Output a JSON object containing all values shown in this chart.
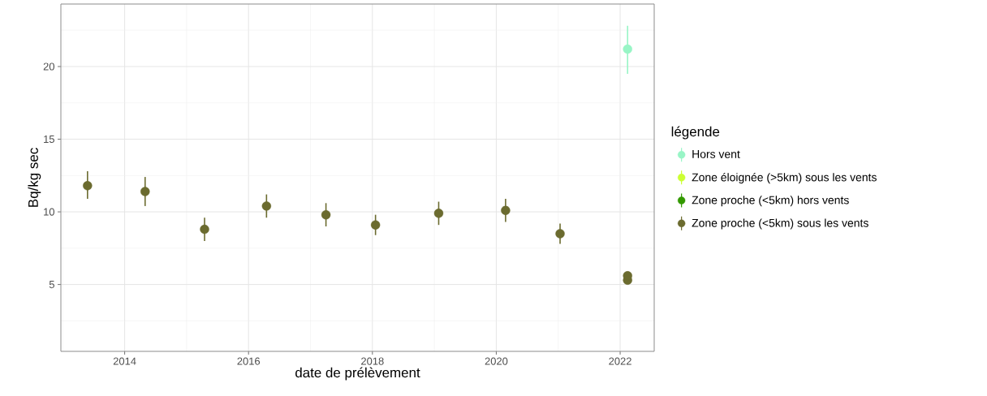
{
  "chart_data": {
    "type": "scatter",
    "xlabel": "date de prélèvement",
    "ylabel": "Bq/kg sec",
    "legend_title": "légende",
    "xlim": [
      2012.97,
      2022.55
    ],
    "ylim": [
      0.4,
      24.3
    ],
    "xticks": [
      2014,
      2016,
      2018,
      2020,
      2022
    ],
    "yticks": [
      5,
      10,
      15,
      20
    ],
    "grid": true,
    "legend": "right",
    "marker": "circle",
    "series": [
      {
        "name": "Hors vent",
        "color": "#98f5c6",
        "x": [
          2022.12
        ],
        "values": [
          21.2
        ],
        "errors": [
          [
            19.5,
            22.8
          ]
        ]
      },
      {
        "name": "Zone éloignée (>5km) sous les vents",
        "color": "#ccff33"
      },
      {
        "name": "Zone proche (<5km) hors vents",
        "color": "#339900"
      },
      {
        "name": "Zone proche (<5km) sous les vents",
        "color": "#6b6b2f",
        "x": [
          2013.4,
          2014.33,
          2015.29,
          2016.29,
          2017.25,
          2018.05,
          2019.07,
          2020.15,
          2021.03,
          2022.12,
          2022.12
        ],
        "values": [
          11.8,
          11.4,
          8.8,
          10.4,
          9.8,
          9.1,
          9.9,
          10.1,
          8.5,
          5.3,
          5.6
        ],
        "errors": [
          [
            10.9,
            12.8
          ],
          [
            10.4,
            12.4
          ],
          [
            8.0,
            9.6
          ],
          [
            9.6,
            11.2
          ],
          [
            9.0,
            10.6
          ],
          [
            8.4,
            9.8
          ],
          [
            9.1,
            10.7
          ],
          [
            9.3,
            10.9
          ],
          [
            7.8,
            9.2
          ],
          null,
          null
        ]
      }
    ]
  }
}
